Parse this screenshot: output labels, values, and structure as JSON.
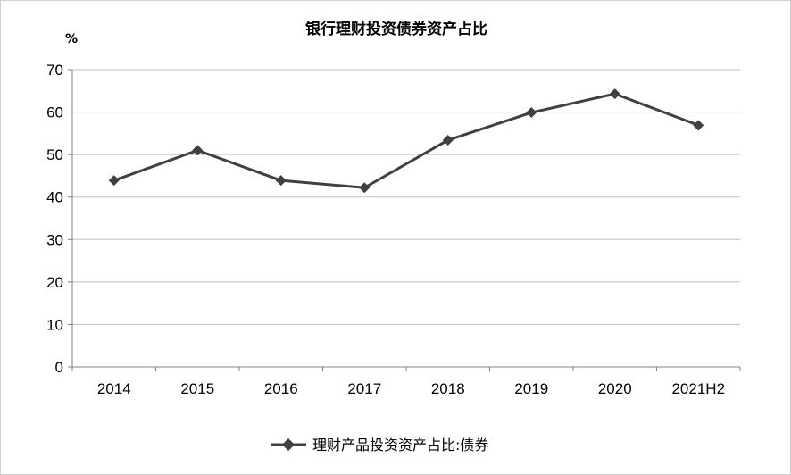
{
  "chart_data": {
    "type": "line",
    "title": "银行理财投资债券资产占比",
    "ylabel": "%",
    "xlabel": "",
    "categories": [
      "2014",
      "2015",
      "2016",
      "2017",
      "2018",
      "2019",
      "2020",
      "2021H2"
    ],
    "series": [
      {
        "name": "理财产品投资资产占比:债券",
        "values": [
          43.9,
          51.0,
          43.9,
          42.2,
          53.4,
          59.9,
          64.3,
          56.9
        ],
        "color": "#404040",
        "marker": "diamond"
      }
    ],
    "ylim": [
      0,
      70
    ],
    "yticks": [
      0,
      10,
      20,
      30,
      40,
      50,
      60,
      70
    ],
    "grid": true,
    "legend_position": "bottom-center"
  }
}
